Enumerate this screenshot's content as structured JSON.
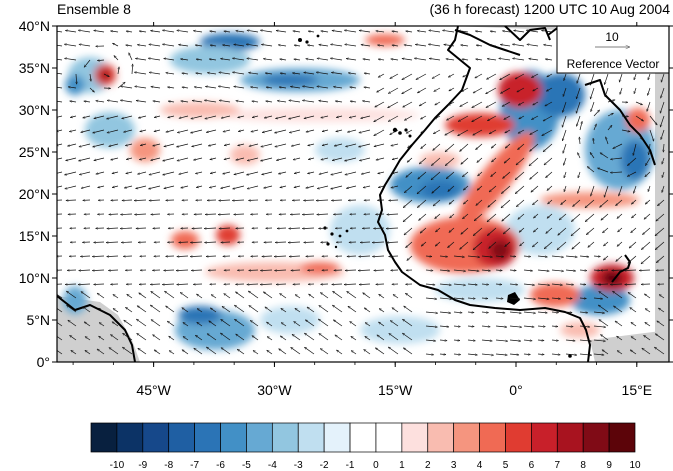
{
  "panel": {
    "title_left": "Ensemble 8",
    "title_right": "(36 h forecast) 1200 UTC 10 Aug 2004"
  },
  "reference_vector": {
    "magnitude_label": "10",
    "caption": "Reference Vector"
  },
  "axes": {
    "lat_ticks": [
      "0°",
      "5°N",
      "10°N",
      "15°N",
      "20°N",
      "25°N",
      "30°N",
      "35°N",
      "40°N"
    ],
    "lon_ticks": [
      "45°W",
      "30°W",
      "15°W",
      "0°",
      "15°E"
    ],
    "lat_range": [
      0,
      40
    ],
    "lon_range": [
      -57,
      19
    ]
  },
  "colorbar": {
    "labels": [
      "-10",
      "-9",
      "-8",
      "-7",
      "-6",
      "-5",
      "-4",
      "-3",
      "-2",
      "-1",
      "0",
      "1",
      "2",
      "3",
      "4",
      "5",
      "6",
      "7",
      "8",
      "9",
      "10"
    ],
    "colors": [
      "#08203f",
      "#0c3366",
      "#16488a",
      "#1f5fa3",
      "#2b74b6",
      "#4290c6",
      "#66a9d3",
      "#92c6e0",
      "#c0dff0",
      "#e4f2fb",
      "#ffffff",
      "#ffffff",
      "#fde0de",
      "#f9bcb0",
      "#f5957f",
      "#f06a54",
      "#e03c31",
      "#c8202a",
      "#a8131f",
      "#800b16",
      "#5c0409"
    ]
  },
  "colors": {
    "coast": "#000000",
    "land_mask": "#cfcfcf",
    "vector": "#111111"
  }
}
